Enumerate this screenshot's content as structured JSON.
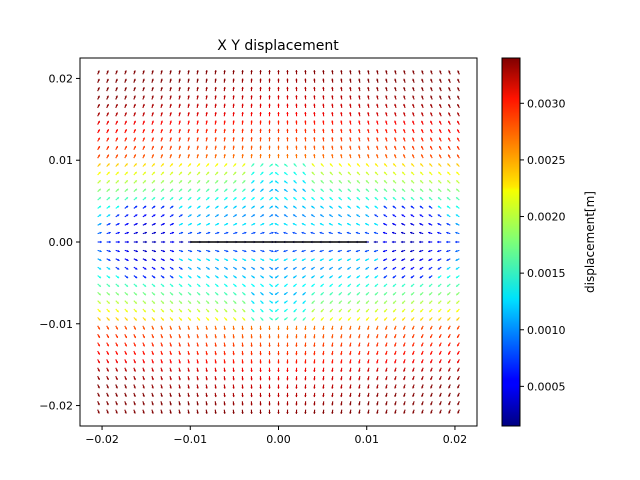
{
  "chart_data": {
    "type": "quiver",
    "title": "X Y displacement",
    "xlabel": "",
    "ylabel": "",
    "xlim": [
      -0.0225,
      0.0225
    ],
    "ylim": [
      -0.0225,
      0.0225
    ],
    "xticks": [
      -0.02,
      -0.01,
      0.0,
      0.01,
      0.02
    ],
    "xtick_labels": [
      "−0.02",
      "−0.01",
      "0.00",
      "0.01",
      "0.02"
    ],
    "yticks": [
      -0.02,
      -0.01,
      0.0,
      0.01,
      0.02
    ],
    "ytick_labels": [
      "−0.02",
      "−0.01",
      "0.00",
      "0.01",
      "0.02"
    ],
    "grid": false,
    "colormap": "jet",
    "colorbar": {
      "label": "displacement[m]",
      "range": [
        0.00015,
        0.0034
      ],
      "ticks": [
        0.0005,
        0.001,
        0.0015,
        0.002,
        0.0025,
        0.003
      ],
      "tick_labels": [
        "0.0005",
        "0.0010",
        "0.0015",
        "0.0020",
        "0.0025",
        "0.0030"
      ]
    },
    "grid_points": {
      "x_range": [
        -0.0205,
        0.0205
      ],
      "y_range": [
        -0.0205,
        0.0205
      ],
      "n": 41
    },
    "crack_line": {
      "x": [
        -0.01,
        0.01
      ],
      "y": [
        0.0,
        0.0
      ],
      "color": "#000000"
    }
  }
}
